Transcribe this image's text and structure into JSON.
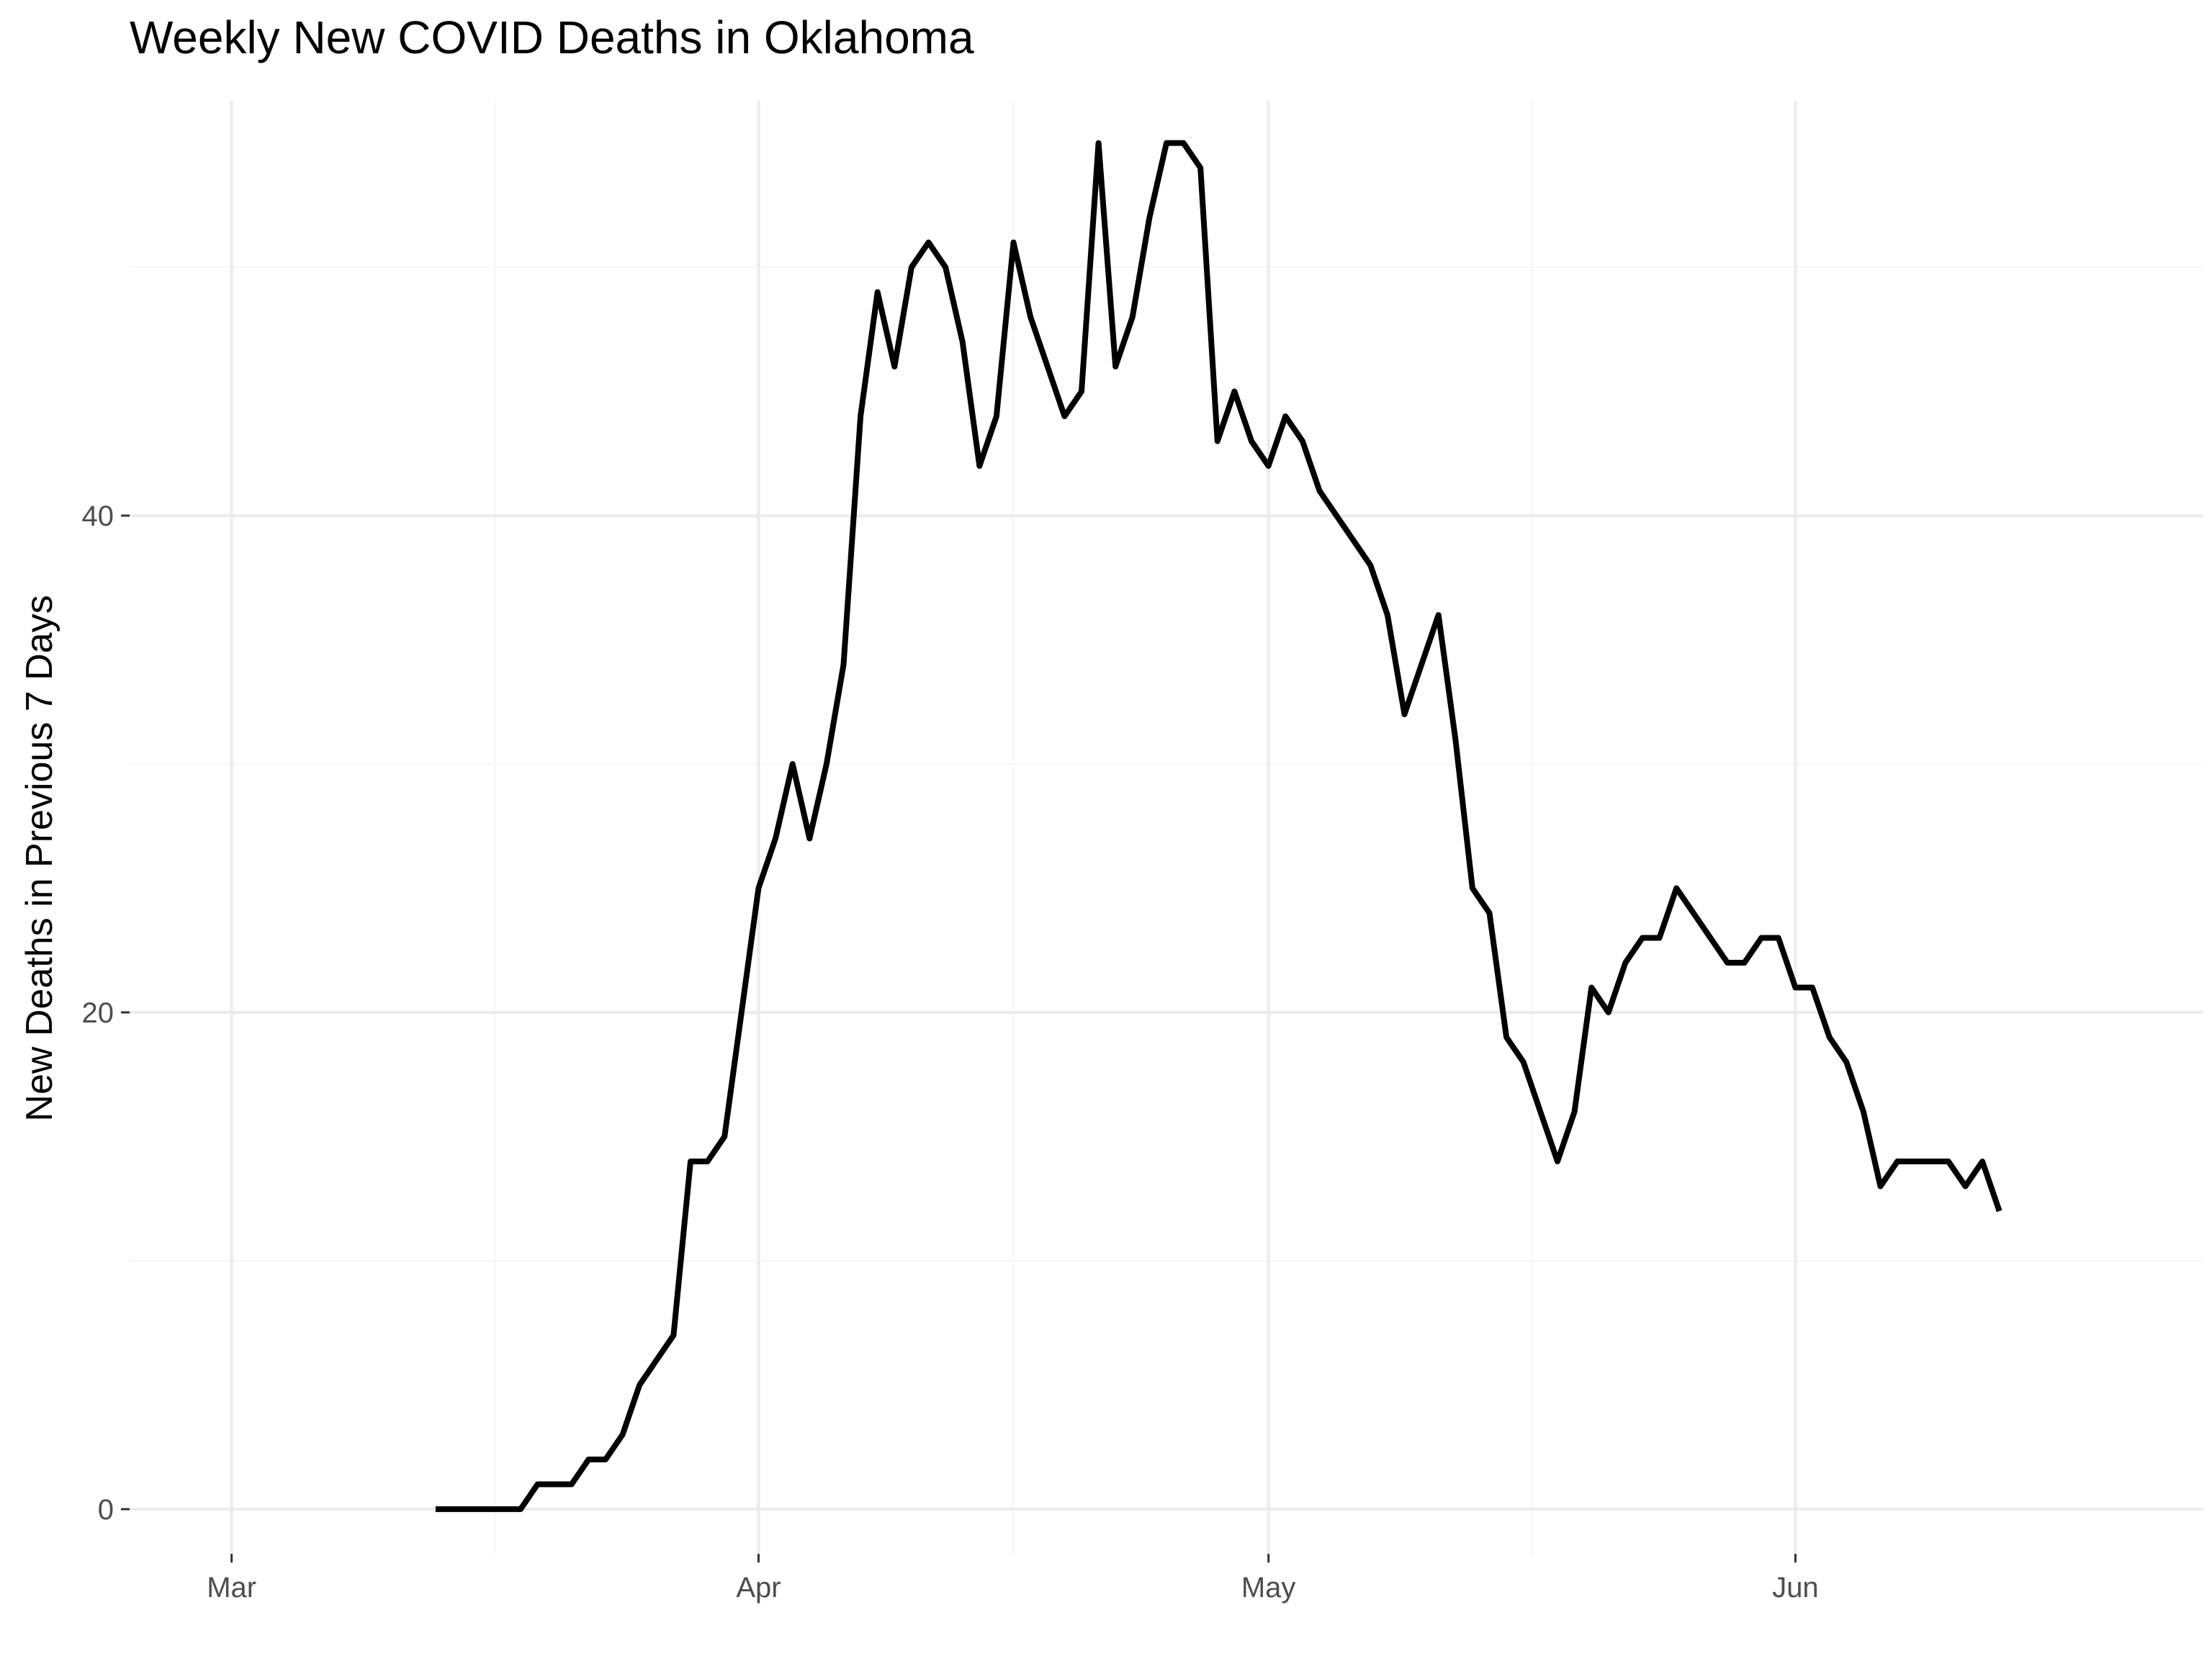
{
  "chart_data": {
    "type": "line",
    "title": "Weekly New COVID Deaths in Oklahoma",
    "xlabel": "",
    "ylabel": "New Deaths in Previous 7 Days",
    "x_start": "2020-03-13",
    "x_step": "1 day",
    "xlim": [
      "2020-02-24",
      "2020-06-25"
    ],
    "ylim": [
      -1.8,
      56.7
    ],
    "x_ticks": [
      {
        "date": "2020-03-01",
        "label": "Mar"
      },
      {
        "date": "2020-04-01",
        "label": "Apr"
      },
      {
        "date": "2020-05-01",
        "label": "May"
      },
      {
        "date": "2020-06-01",
        "label": "Jun"
      }
    ],
    "y_ticks": [
      0,
      20,
      40
    ],
    "grid": true,
    "legend": "none",
    "line_color": "#000000",
    "series": [
      {
        "values": [
          0,
          0,
          0,
          0,
          0,
          0,
          1,
          1,
          1,
          2,
          2,
          3,
          5,
          6,
          7,
          14,
          14,
          15,
          20,
          25,
          27,
          30,
          27,
          30,
          34,
          44,
          49,
          46,
          50,
          51,
          50,
          47,
          42,
          44,
          51,
          48,
          46,
          44,
          45,
          55,
          46,
          48,
          52,
          55,
          55,
          54,
          43,
          45,
          43,
          42,
          44,
          43,
          41,
          40,
          39,
          38,
          36,
          32,
          34,
          36,
          31,
          25,
          24,
          19,
          18,
          16,
          14,
          16,
          21,
          20,
          22,
          23,
          23,
          25,
          24,
          23,
          22,
          22,
          23,
          23,
          21,
          21,
          19,
          18,
          16,
          13,
          14,
          14,
          14,
          14,
          13,
          14,
          12
        ]
      }
    ]
  }
}
